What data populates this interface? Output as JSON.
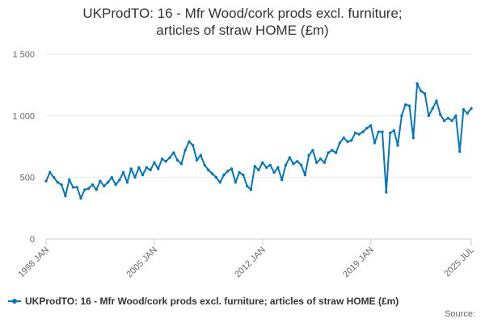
{
  "chart_data": {
    "type": "line",
    "title": "UKProdTO: 16 - Mfr Wood/cork prods excl. furniture; articles of straw HOME (£m)",
    "title_lines": [
      "UKProdTO: 16 - Mfr Wood/cork prods excl. furniture;",
      "articles of straw HOME (£m)"
    ],
    "xlabel": "",
    "ylabel": "",
    "x_range": [
      "1998-01",
      "2025-07"
    ],
    "ylim": [
      0,
      1500
    ],
    "y_ticks": [
      0,
      500,
      1000,
      1500
    ],
    "y_tick_labels": [
      "0",
      "500",
      "1 000",
      "1 500"
    ],
    "x_ticks": [
      "1998-01",
      "2005-01",
      "2012-01",
      "2019-01",
      "2025-07"
    ],
    "x_tick_labels": [
      "1998 JAN",
      "2005 JAN",
      "2012 JAN",
      "2019 JAN",
      "2025 JUL"
    ],
    "grid": true,
    "legend_position": "bottom",
    "series": [
      {
        "name": "UKProdTO: 16 - Mfr Wood/cork prods excl. furniture; articles of straw HOME (£m)",
        "color": "#0077be",
        "x": [
          "1998-01",
          "1998-04",
          "1998-07",
          "1998-10",
          "1999-01",
          "1999-04",
          "1999-07",
          "1999-10",
          "2000-01",
          "2000-04",
          "2000-07",
          "2000-10",
          "2001-01",
          "2001-04",
          "2001-07",
          "2001-10",
          "2002-01",
          "2002-04",
          "2002-07",
          "2002-10",
          "2003-01",
          "2003-04",
          "2003-07",
          "2003-10",
          "2004-01",
          "2004-04",
          "2004-07",
          "2004-10",
          "2005-01",
          "2005-04",
          "2005-07",
          "2005-10",
          "2006-01",
          "2006-04",
          "2006-07",
          "2006-10",
          "2007-01",
          "2007-04",
          "2007-07",
          "2007-10",
          "2008-01",
          "2008-04",
          "2008-07",
          "2008-10",
          "2009-01",
          "2009-04",
          "2009-07",
          "2009-10",
          "2010-01",
          "2010-04",
          "2010-07",
          "2010-10",
          "2011-01",
          "2011-04",
          "2011-07",
          "2011-10",
          "2012-01",
          "2012-04",
          "2012-07",
          "2012-10",
          "2013-01",
          "2013-04",
          "2013-07",
          "2013-10",
          "2014-01",
          "2014-04",
          "2014-07",
          "2014-10",
          "2015-01",
          "2015-04",
          "2015-07",
          "2015-10",
          "2016-01",
          "2016-04",
          "2016-07",
          "2016-10",
          "2017-01",
          "2017-04",
          "2017-07",
          "2017-10",
          "2018-01",
          "2018-04",
          "2018-07",
          "2018-10",
          "2019-01",
          "2019-04",
          "2019-07",
          "2019-10",
          "2020-01",
          "2020-04",
          "2020-07",
          "2020-10",
          "2021-01",
          "2021-04",
          "2021-07",
          "2021-10",
          "2022-01",
          "2022-04",
          "2022-07",
          "2022-10",
          "2023-01",
          "2023-04",
          "2023-07",
          "2023-10",
          "2024-01",
          "2024-04",
          "2024-07",
          "2024-10",
          "2025-01",
          "2025-04",
          "2025-07"
        ],
        "values": [
          470,
          540,
          500,
          460,
          440,
          350,
          480,
          420,
          420,
          330,
          400,
          410,
          440,
          400,
          470,
          430,
          460,
          500,
          440,
          480,
          540,
          460,
          570,
          500,
          580,
          520,
          580,
          560,
          620,
          570,
          650,
          630,
          660,
          700,
          640,
          610,
          720,
          790,
          760,
          640,
          680,
          600,
          560,
          530,
          500,
          460,
          520,
          550,
          570,
          460,
          540,
          520,
          430,
          400,
          590,
          560,
          620,
          580,
          600,
          540,
          580,
          480,
          600,
          660,
          610,
          630,
          600,
          520,
          680,
          720,
          620,
          650,
          620,
          700,
          720,
          700,
          780,
          820,
          790,
          800,
          860,
          850,
          870,
          900,
          920,
          780,
          870,
          870,
          380,
          860,
          880,
          760,
          1000,
          1090,
          1080,
          820,
          1260,
          1200,
          1180,
          1000,
          1060,
          1120,
          1010,
          960,
          980,
          960,
          1000,
          710,
          1050,
          1020,
          1060
        ]
      }
    ]
  },
  "legend": {
    "label": "UKProdTO: 16 - Mfr Wood/cork prods excl. furniture; articles of straw HOME (£m)"
  },
  "footer": {
    "source_label": "Source:"
  }
}
